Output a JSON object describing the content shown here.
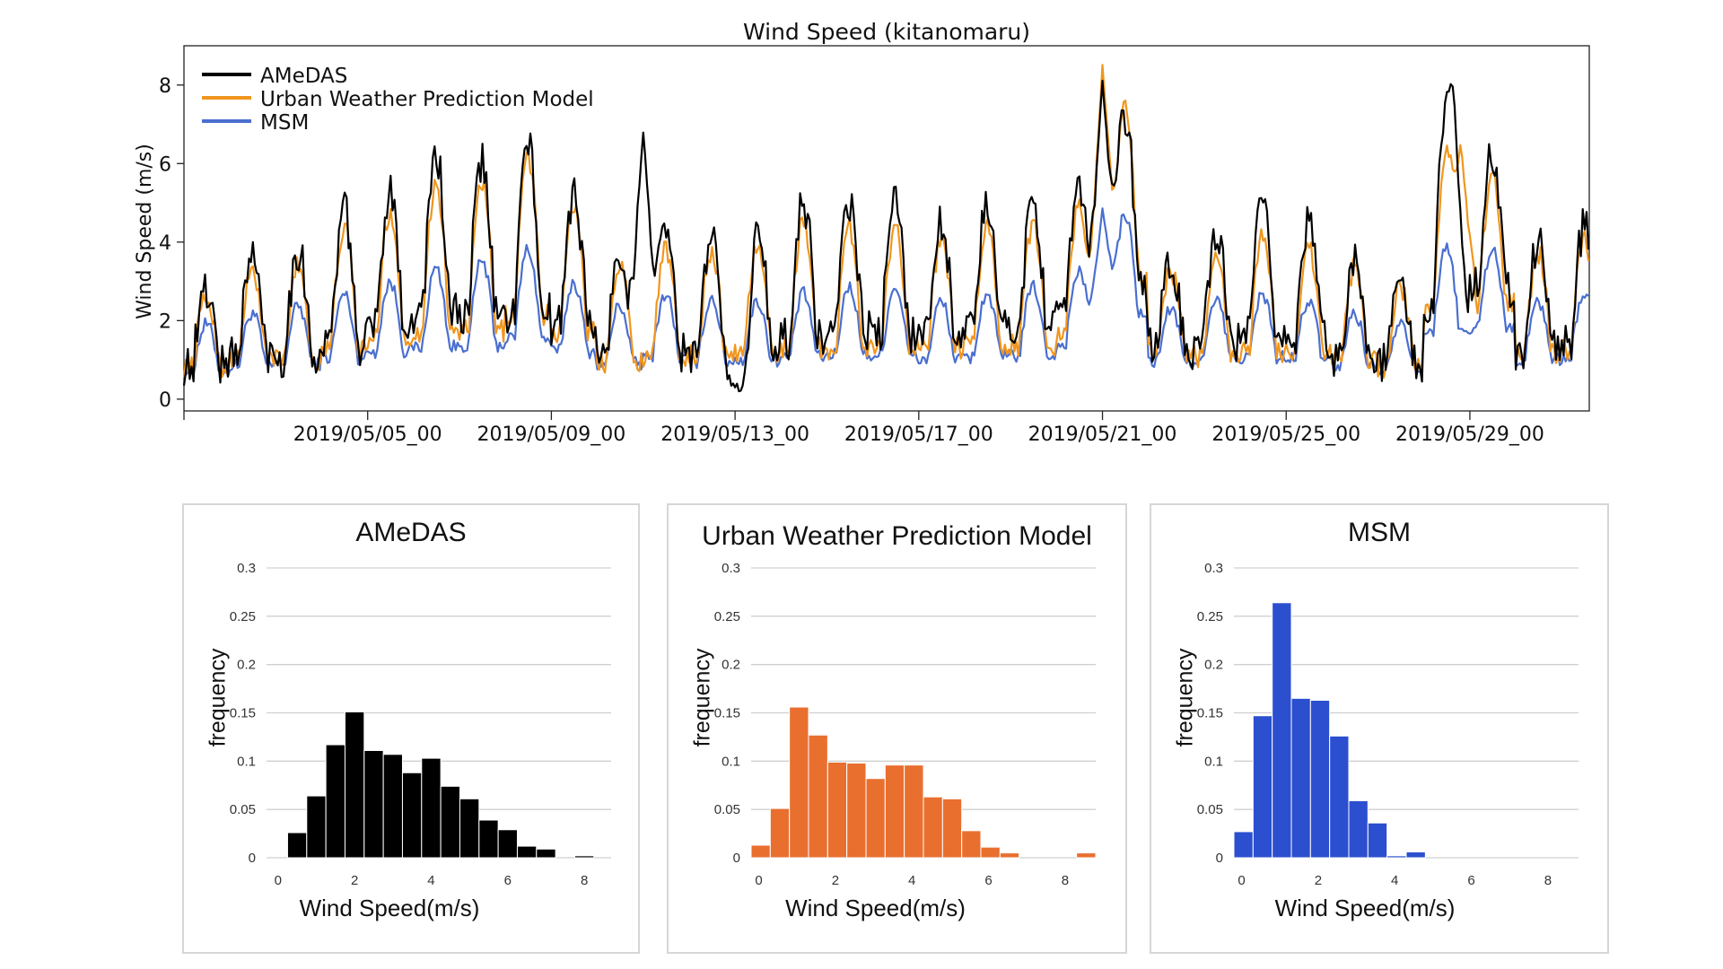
{
  "colors": {
    "amedas": "#000000",
    "urban": "#f0961e",
    "msm": "#4a6fd0",
    "hist_amedas": "#000000",
    "hist_urban": "#e96f2f",
    "hist_msm": "#2b4fcf",
    "grid": "#d0d0d0"
  },
  "chart_data": [
    {
      "type": "line",
      "title": "Wind Speed (kitanomaru)",
      "ylabel": "Wind Speed (m/s)",
      "xlabel": "",
      "ylim": [
        -0.3,
        9.0
      ],
      "yticks": [
        0,
        2,
        4,
        6,
        8
      ],
      "x_range_days": [
        0,
        30.6
      ],
      "xtick_days": [
        4,
        8,
        12,
        16,
        20,
        24,
        28
      ],
      "xtick_labels": [
        "2019/05/05_00",
        "2019/05/09_00",
        "2019/05/13_00",
        "2019/05/17_00",
        "2019/05/21_00",
        "2019/05/25_00",
        "2019/05/29_00"
      ],
      "legend": [
        "AMeDAS",
        "Urban Weather Prediction Model",
        "MSM"
      ],
      "legend_position": "top-left",
      "series": [
        {
          "name": "AMeDAS",
          "key": "amedas",
          "daily_base": [
            1.5,
            2.0,
            2.0,
            2.5,
            3.0,
            3.5,
            3.4,
            3.6,
            3.0,
            1.9,
            2.2,
            2.1,
            2.4,
            2.7,
            2.8,
            2.8,
            2.6,
            2.8,
            2.9,
            3.2,
            4.4,
            2.0,
            2.3,
            2.7,
            2.5,
            1.9,
            1.6,
            3.5,
            4.0,
            2.2,
            2.4
          ],
          "daily_amp": [
            1.4,
            1.8,
            2.0,
            2.5,
            2.6,
            3.0,
            2.9,
            3.2,
            2.5,
            2.0,
            2.2,
            2.1,
            2.1,
            2.6,
            2.4,
            2.4,
            2.1,
            2.3,
            2.4,
            2.6,
            3.2,
            1.6,
            1.9,
            2.4,
            2.1,
            1.8,
            1.6,
            3.2,
            2.6,
            2.0,
            2.2
          ],
          "events": [
            [
              20.0,
              8.4
            ],
            [
              27.6,
              8.3
            ],
            [
              12.1,
              0.0
            ],
            [
              10.0,
              7.1
            ]
          ],
          "noise": 0.55
        },
        {
          "name": "Urban Weather Prediction Model",
          "key": "urban",
          "daily_base": [
            1.4,
            1.8,
            1.8,
            2.3,
            2.6,
            3.0,
            3.0,
            3.5,
            2.8,
            1.8,
            2.0,
            2.0,
            2.1,
            2.4,
            2.3,
            2.4,
            2.2,
            2.4,
            2.4,
            2.8,
            4.6,
            1.9,
            1.9,
            2.2,
            2.1,
            1.8,
            1.5,
            3.5,
            3.5,
            2.0,
            2.2
          ],
          "daily_amp": [
            1.3,
            1.6,
            1.8,
            2.3,
            2.4,
            2.8,
            2.8,
            3.0,
            2.4,
            1.9,
            2.0,
            2.0,
            2.0,
            2.4,
            2.3,
            2.2,
            2.0,
            2.2,
            2.3,
            2.4,
            3.3,
            1.5,
            1.8,
            2.3,
            2.0,
            1.7,
            1.5,
            3.0,
            2.4,
            1.9,
            2.1
          ],
          "events": [
            [
              20.0,
              8.8
            ],
            [
              27.8,
              6.8
            ]
          ],
          "noise": 0.28
        },
        {
          "name": "MSM",
          "key": "msm",
          "daily_base": [
            1.1,
            1.3,
            1.4,
            1.6,
            1.8,
            2.0,
            2.1,
            2.3,
            1.8,
            1.4,
            1.6,
            1.5,
            1.5,
            1.6,
            1.7,
            1.7,
            1.5,
            1.6,
            1.7,
            2.0,
            3.0,
            1.4,
            1.5,
            1.6,
            1.5,
            1.3,
            1.2,
            2.4,
            2.5,
            1.5,
            1.6
          ],
          "daily_amp": [
            0.9,
            1.0,
            1.1,
            1.2,
            1.3,
            1.5,
            1.6,
            1.7,
            1.3,
            1.1,
            1.2,
            1.2,
            1.1,
            1.2,
            1.3,
            1.3,
            1.1,
            1.2,
            1.3,
            1.4,
            1.9,
            1.0,
            1.1,
            1.2,
            1.1,
            1.0,
            0.9,
            1.6,
            1.5,
            1.1,
            1.2
          ],
          "events": [
            [
              20.0,
              5.0
            ]
          ],
          "noise": 0.18
        }
      ]
    },
    {
      "type": "bar",
      "title": "AMeDAS",
      "xlabel": "Wind Speed(m/s)",
      "ylabel": "frequency",
      "key": "hist_amedas",
      "xlim": [
        -0.3,
        8.7
      ],
      "ylim": [
        0,
        0.3
      ],
      "yticks": [
        "0",
        "0.05",
        "0.1",
        "0.15",
        "0.2",
        "0.25",
        "0.3"
      ],
      "xticks": [
        "0",
        "2",
        "4",
        "6",
        "8"
      ],
      "bin_width": 0.5,
      "bin_starts": [
        0.25,
        0.75,
        1.25,
        1.75,
        2.25,
        2.75,
        3.25,
        3.75,
        4.25,
        4.75,
        5.25,
        5.75,
        6.25,
        6.75,
        7.75
      ],
      "values": [
        0.026,
        0.064,
        0.117,
        0.151,
        0.111,
        0.107,
        0.088,
        0.103,
        0.074,
        0.061,
        0.039,
        0.029,
        0.012,
        0.009,
        0.002
      ]
    },
    {
      "type": "bar",
      "title": "Urban Weather Prediction Model",
      "xlabel": "Wind Speed(m/s)",
      "ylabel": "frequency",
      "key": "hist_urban",
      "xlim": [
        -0.2,
        8.8
      ],
      "ylim": [
        0,
        0.3
      ],
      "yticks": [
        "0",
        "0.05",
        "0.1",
        "0.15",
        "0.2",
        "0.25",
        "0.3"
      ],
      "xticks": [
        "0",
        "2",
        "4",
        "6",
        "8"
      ],
      "bin_width": 0.5,
      "bin_starts": [
        -0.2,
        0.3,
        0.8,
        1.3,
        1.8,
        2.3,
        2.8,
        3.3,
        3.8,
        4.3,
        4.8,
        5.3,
        5.8,
        6.3,
        8.3
      ],
      "values": [
        0.013,
        0.051,
        0.156,
        0.127,
        0.099,
        0.098,
        0.082,
        0.096,
        0.096,
        0.063,
        0.061,
        0.028,
        0.011,
        0.005,
        0.005
      ]
    },
    {
      "type": "bar",
      "title": "MSM",
      "xlabel": "Wind Speed(m/s)",
      "ylabel": "frequency",
      "key": "hist_msm",
      "xlim": [
        -0.2,
        8.8
      ],
      "ylim": [
        0,
        0.3
      ],
      "yticks": [
        "0",
        "0.05",
        "0.1",
        "0.15",
        "0.2",
        "0.25",
        "0.3"
      ],
      "xticks": [
        "0",
        "2",
        "4",
        "6",
        "8"
      ],
      "bin_width": 0.5,
      "bin_starts": [
        -0.2,
        0.3,
        0.8,
        1.3,
        1.8,
        2.3,
        2.8,
        3.3,
        3.8,
        4.3
      ],
      "values": [
        0.027,
        0.147,
        0.264,
        0.165,
        0.163,
        0.126,
        0.059,
        0.036,
        0.002,
        0.006
      ]
    }
  ]
}
